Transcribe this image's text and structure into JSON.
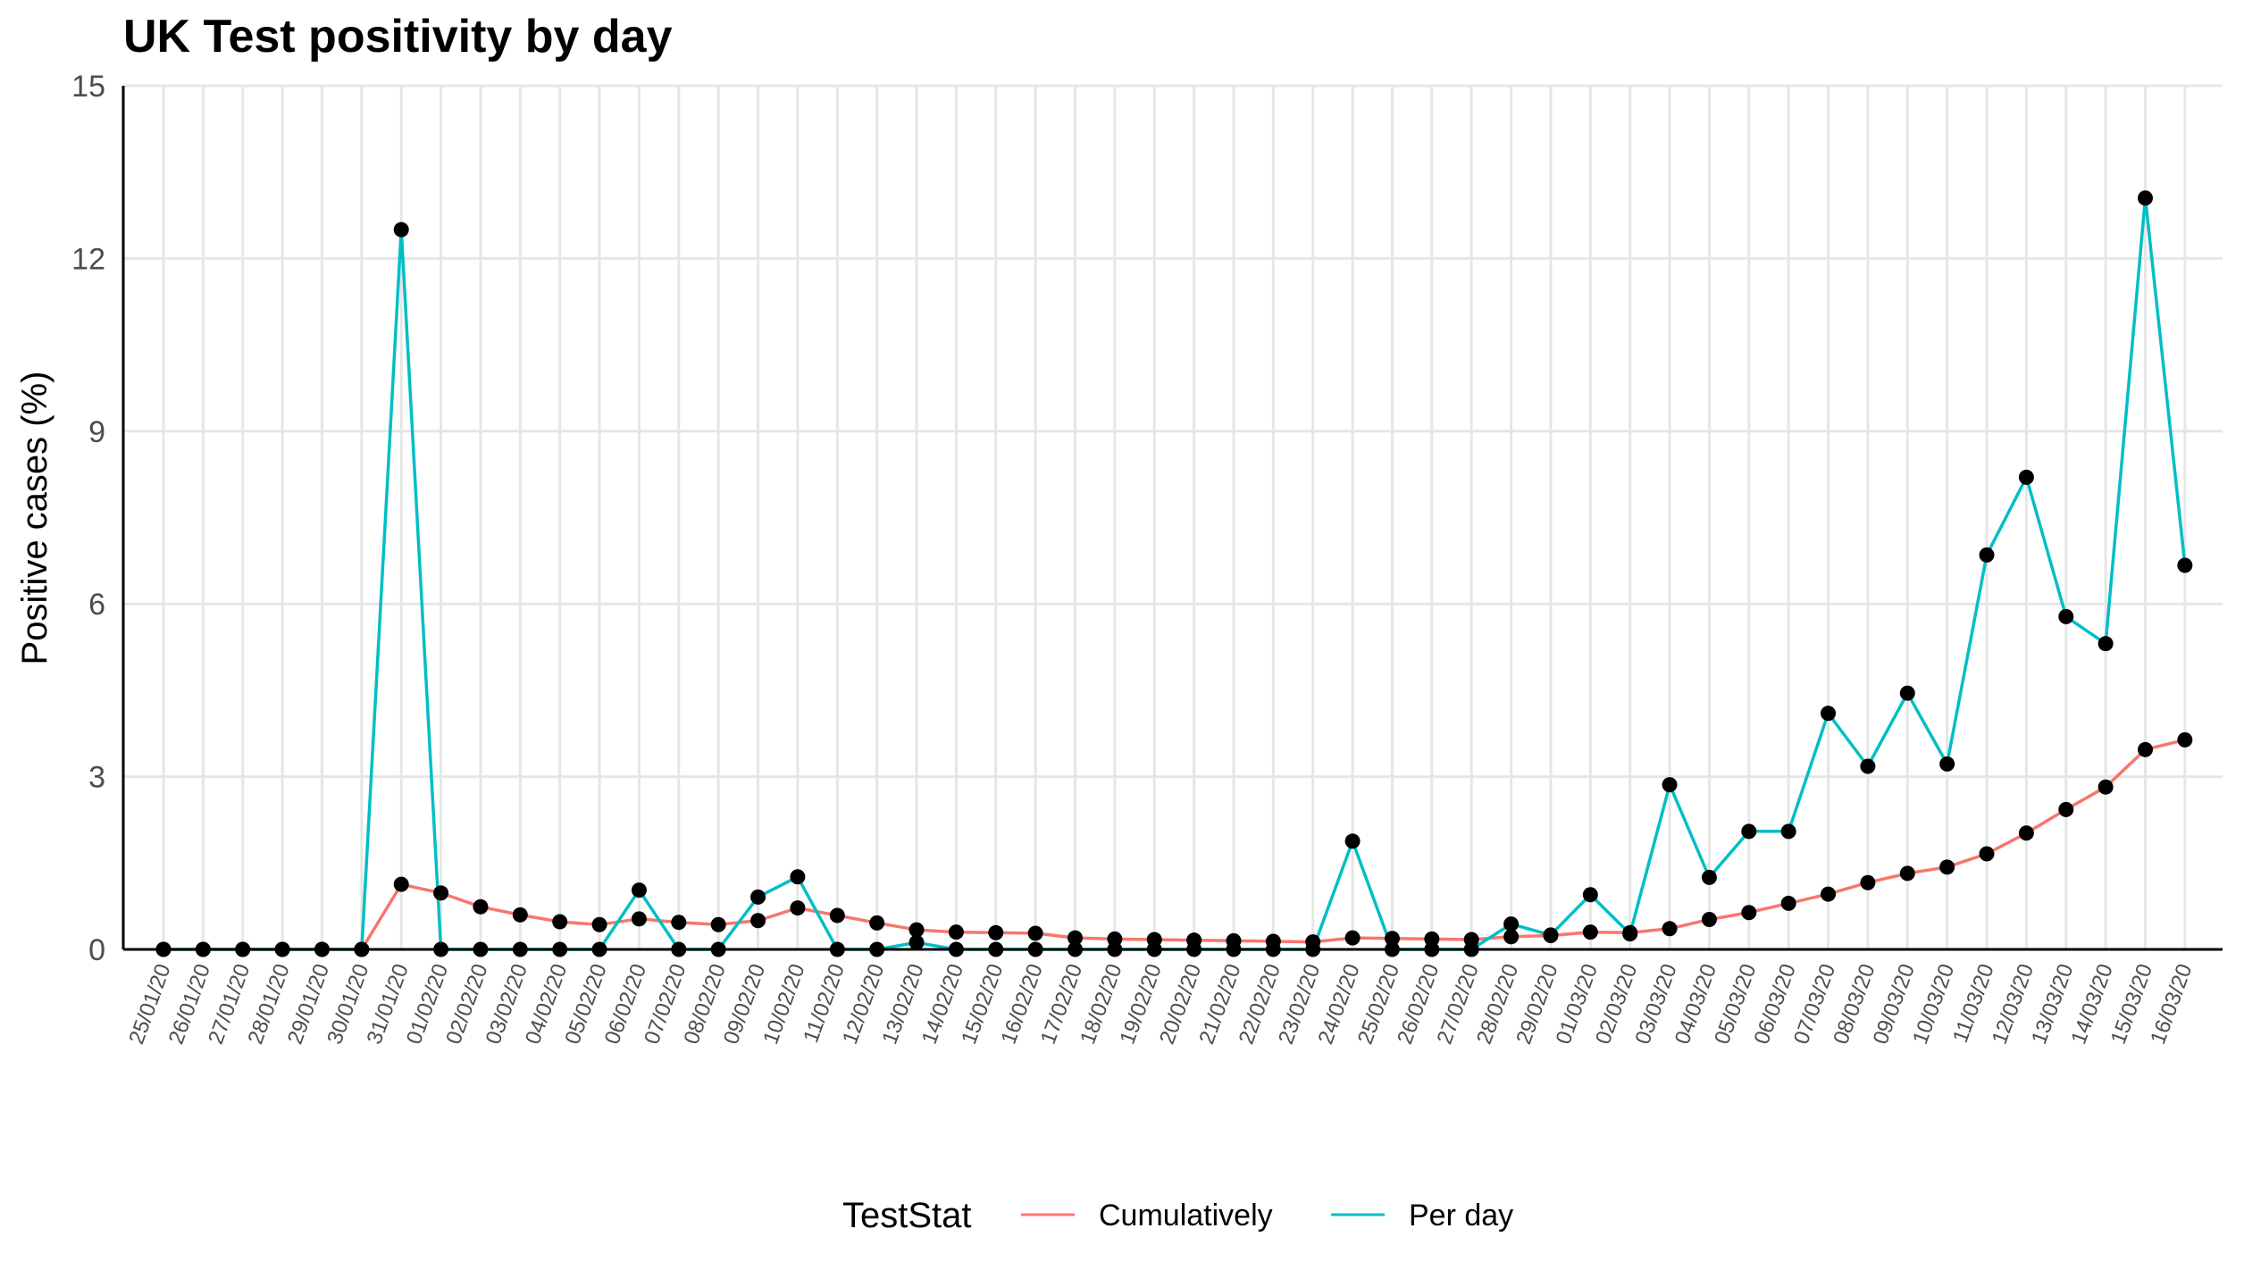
{
  "chart_data": {
    "type": "line",
    "title": "UK Test positivity by day",
    "ylabel": "Positive cases (%)",
    "xlabel": "",
    "ylim": [
      0,
      15
    ],
    "yticks": [
      "0",
      "3",
      "6",
      "9",
      "12",
      "15"
    ],
    "grid": true,
    "legend_position": "bottom",
    "legend_title": "TestStat",
    "categories": [
      "25/01/20",
      "26/01/20",
      "27/01/20",
      "28/01/20",
      "29/01/20",
      "30/01/20",
      "31/01/20",
      "01/02/20",
      "02/02/20",
      "03/02/20",
      "04/02/20",
      "05/02/20",
      "06/02/20",
      "07/02/20",
      "08/02/20",
      "09/02/20",
      "10/02/20",
      "11/02/20",
      "12/02/20",
      "13/02/20",
      "14/02/20",
      "15/02/20",
      "16/02/20",
      "17/02/20",
      "18/02/20",
      "19/02/20",
      "20/02/20",
      "21/02/20",
      "22/02/20",
      "23/02/20",
      "24/02/20",
      "25/02/20",
      "26/02/20",
      "27/02/20",
      "28/02/20",
      "29/02/20",
      "01/03/20",
      "02/03/20",
      "03/03/20",
      "04/03/20",
      "05/03/20",
      "06/03/20",
      "07/03/20",
      "08/03/20",
      "09/03/20",
      "10/03/20",
      "11/03/20",
      "12/03/20",
      "13/03/20",
      "14/03/20",
      "15/03/20",
      "16/03/20"
    ],
    "series": [
      {
        "name": "Cumulatively",
        "color": "#F8766D",
        "values": [
          0,
          0,
          0,
          0,
          0,
          0,
          1.13,
          0.98,
          0.74,
          0.6,
          0.48,
          0.43,
          0.53,
          0.47,
          0.43,
          0.5,
          0.72,
          0.59,
          0.46,
          0.34,
          0.3,
          0.29,
          0.28,
          0.2,
          0.18,
          0.17,
          0.16,
          0.15,
          0.14,
          0.13,
          0.2,
          0.19,
          0.18,
          0.17,
          0.22,
          0.24,
          0.3,
          0.29,
          0.36,
          0.52,
          0.64,
          0.8,
          0.96,
          1.16,
          1.32,
          1.43,
          1.66,
          2.02,
          2.43,
          2.82,
          3.47,
          3.64
        ]
      },
      {
        "name": "Per day",
        "color": "#00BFC4",
        "values": [
          0,
          0,
          0,
          0,
          0,
          0,
          12.5,
          0,
          0,
          0,
          0,
          0,
          1.03,
          0,
          0,
          0.91,
          1.26,
          0,
          0,
          0.12,
          0,
          0,
          0,
          0,
          0,
          0,
          0,
          0,
          0,
          0,
          1.88,
          0,
          0,
          0,
          0.44,
          0.25,
          0.95,
          0.27,
          2.86,
          1.25,
          2.05,
          2.05,
          4.1,
          3.18,
          4.45,
          3.22,
          6.85,
          8.2,
          5.78,
          5.31,
          13.05,
          6.67
        ]
      }
    ]
  }
}
